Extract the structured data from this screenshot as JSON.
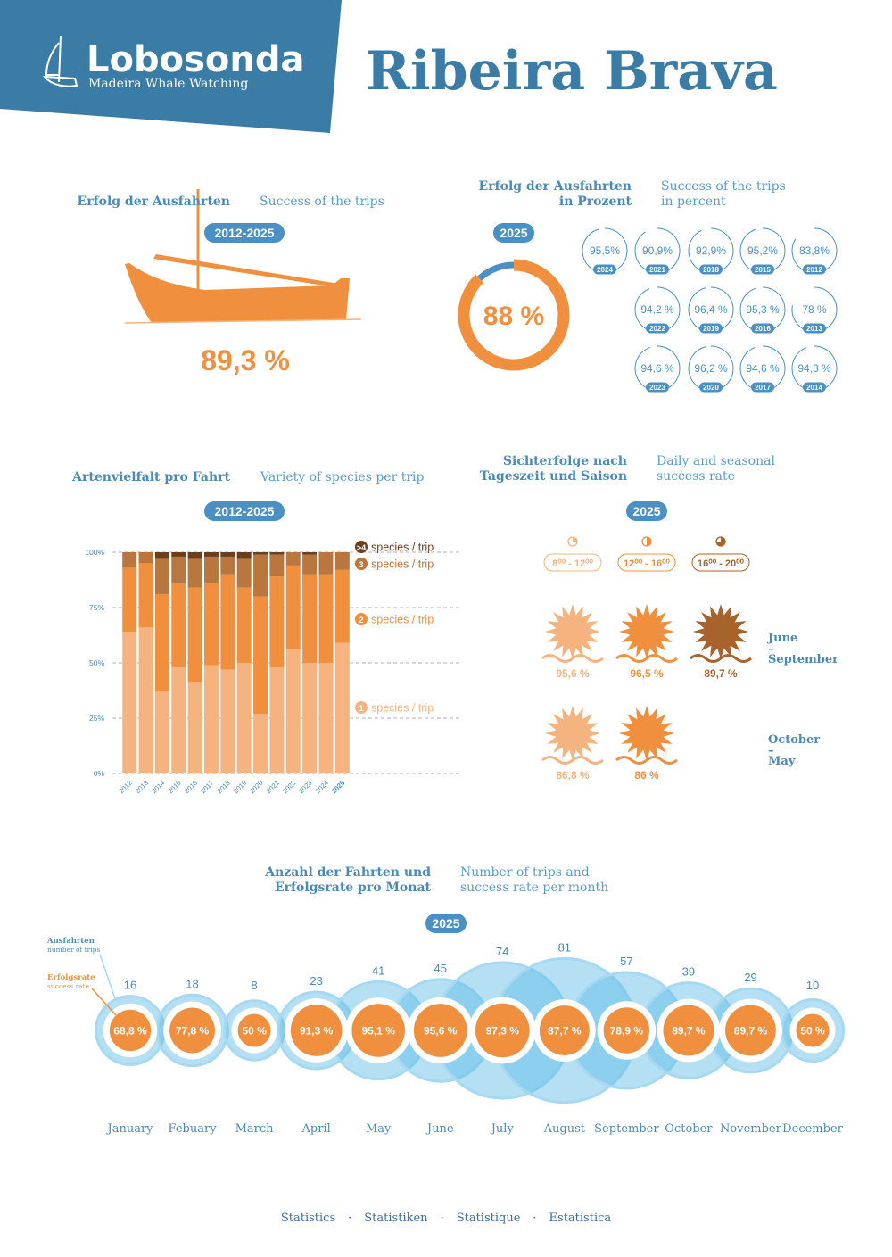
{
  "header": {
    "brand": "Lobosonda",
    "tagline": "Madeira Whale Watching",
    "title": "Ribeira Brava"
  },
  "chart_data": [
    {
      "type": "stat",
      "title": "Erfolg der Ausfahrten",
      "subtitle": "Success of the trips",
      "period": "2012-2025",
      "value_label": "89,3 %",
      "color": "#f0903f"
    },
    {
      "type": "donut",
      "title": "Erfolg der Ausfahrten\nin Prozent",
      "subtitle": "Success of the trips\nin percent",
      "period": "2025",
      "value": 88,
      "value_label": "88 %",
      "colors": [
        "#f0903f",
        "#4a90c4"
      ],
      "categories": [
        "2024",
        "2021",
        "2018",
        "2015",
        "2012",
        "2022",
        "2019",
        "2016",
        "2013",
        "2023",
        "2020",
        "2017",
        "2014"
      ],
      "values": [
        95.5,
        90.9,
        92.9,
        95.2,
        83.8,
        94.2,
        96.4,
        95.3,
        78,
        94.6,
        96.2,
        94.6,
        94.3
      ],
      "value_labels": [
        "95,5%",
        "90,9%",
        "92,9%",
        "95,2%",
        "83,8%",
        "94,2 %",
        "96,4 %",
        "95,3 %",
        "78 %",
        "94,6 %",
        "96,2 %",
        "94,6 %",
        "94,3 %"
      ]
    },
    {
      "type": "stacked_bar",
      "title": "Artenvielfalt pro Fahrt",
      "subtitle": "Variety of species per trip",
      "period": "2012-2025",
      "categories": [
        "2012",
        "2013",
        "2014",
        "2015",
        "2016",
        "2017",
        "2018",
        "2019",
        "2020",
        "2021",
        "2022",
        "2023",
        "2024",
        "2025"
      ],
      "legend_label": "species / trip",
      "series": [
        {
          "name": "1",
          "color": "#f5b47f",
          "values": [
            64,
            66,
            37,
            48,
            41,
            49,
            47,
            50,
            27,
            48,
            56,
            50,
            50,
            59
          ]
        },
        {
          "name": "2",
          "color": "#f0903f",
          "values": [
            29,
            29,
            44,
            38,
            43,
            37,
            43,
            34,
            53,
            41,
            38,
            40,
            40,
            33
          ]
        },
        {
          "name": "3",
          "color": "#b8773f",
          "values": [
            7,
            5,
            16,
            12,
            13,
            12,
            8,
            13,
            19,
            10,
            6,
            9,
            10,
            8
          ]
        },
        {
          "name": ">4",
          "color": "#6b3f1d",
          "values": [
            0,
            0,
            3,
            2,
            3,
            2,
            2,
            3,
            1,
            1,
            0,
            1,
            0,
            0
          ]
        }
      ],
      "ylim": [
        0,
        100
      ],
      "yticks": [
        {
          "value": 0,
          "label": "0%"
        },
        {
          "value": 25,
          "label": "25%"
        },
        {
          "value": 50,
          "label": "50%"
        },
        {
          "value": 75,
          "label": "75%"
        },
        {
          "value": 100,
          "label": "100%"
        }
      ],
      "grid": true
    },
    {
      "type": "sun",
      "title": "Sichterfolge nach\nTageszeit und Saison",
      "subtitle": "Daily and seasonal\nsuccess rate",
      "period": "2025",
      "categories": [
        "8⁰⁰ - 12⁰⁰",
        "12⁰⁰ - 16⁰⁰",
        "16⁰⁰ - 20⁰⁰"
      ],
      "colors": [
        "#f5b47f",
        "#f0903f",
        "#a8622b"
      ],
      "series": [
        {
          "name": "June\n–\nSeptember",
          "values": [
            95.6,
            96.5,
            89.7
          ],
          "value_labels": [
            "95,6 %",
            "96,5 %",
            "89,7 %"
          ]
        },
        {
          "name": "October\n–\nMay",
          "values": [
            86.8,
            86,
            null
          ],
          "value_labels": [
            "86,8 %",
            "86 %",
            null
          ]
        }
      ]
    },
    {
      "type": "bubble",
      "title": "Anzahl der Fahrten und\nErfolgsrate pro Monat",
      "subtitle": "Number of trips and\nsuccess rate per month",
      "period": "2025",
      "annotations": {
        "size_title": "Ausfahrten",
        "size_subtitle": "number of trips",
        "value_title": "Erfolgsrate",
        "value_subtitle": "success rate"
      },
      "categories": [
        "January",
        "Febuary",
        "March",
        "April",
        "May",
        "June",
        "July",
        "August",
        "September",
        "October",
        "November",
        "December"
      ],
      "sizes": [
        16,
        18,
        8,
        23,
        41,
        45,
        74,
        81,
        57,
        39,
        29,
        10
      ],
      "values": [
        68.8,
        77.8,
        50,
        91.3,
        95.1,
        95.6,
        97.3,
        87.7,
        78.9,
        89.7,
        89.7,
        50
      ],
      "value_labels": [
        "68,8 %",
        "77,8 %",
        "50 %",
        "91,3 %",
        "95,1 %",
        "95,6 %",
        "97,3 %",
        "87,7 %",
        "78,9 %",
        "89,7 %",
        "89,7 %",
        "50 %"
      ],
      "colors": [
        "#f0903f",
        "#5bbbe6"
      ]
    }
  ],
  "footer": {
    "items": [
      "Statistics",
      "Statistiken",
      "Statistique",
      "Estatística"
    ],
    "separator": "·"
  }
}
